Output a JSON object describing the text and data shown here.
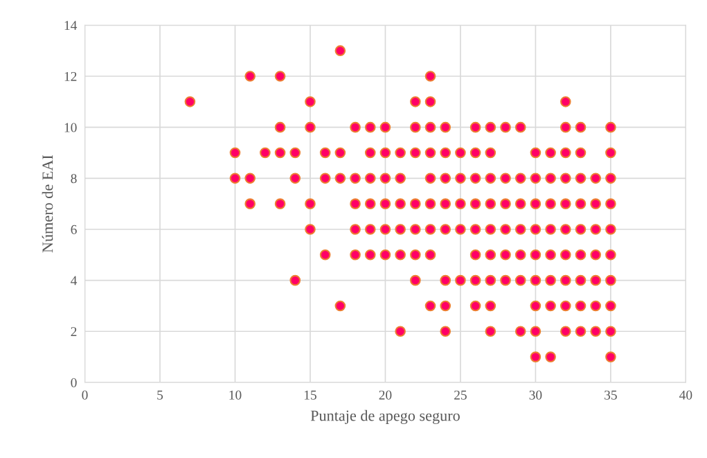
{
  "chart_data": {
    "type": "scatter",
    "xlabel": "Puntaje de apego seguro",
    "ylabel": "Número de EAI",
    "xlim": [
      0,
      40
    ],
    "xticks": [
      0,
      5,
      10,
      15,
      20,
      25,
      30,
      35,
      40
    ],
    "ylim": [
      0,
      14
    ],
    "yticks": [
      0,
      2,
      4,
      6,
      8,
      10,
      12,
      14
    ],
    "grid": true,
    "marker": "circle",
    "series": [
      {
        "color": "#ff0066",
        "x": [
          17,
          11,
          13,
          23,
          7,
          15,
          22,
          23,
          32,
          13,
          15,
          18,
          19,
          20,
          22,
          23,
          24,
          26,
          27,
          28,
          29,
          32,
          33,
          35,
          10,
          12,
          13,
          14,
          16,
          17,
          19,
          20,
          21,
          22,
          23,
          24,
          25,
          26,
          27,
          30,
          31,
          32,
          33,
          35,
          10,
          11,
          14,
          16,
          17,
          18,
          19,
          20,
          21,
          23,
          24,
          25,
          26,
          27,
          28,
          29,
          30,
          31,
          32,
          33,
          34,
          35,
          11,
          13,
          15,
          18,
          19,
          20,
          21,
          22,
          23,
          24,
          25,
          26,
          27,
          28,
          29,
          30,
          31,
          32,
          33,
          34,
          35,
          15,
          18,
          19,
          20,
          21,
          22,
          23,
          24,
          25,
          26,
          27,
          28,
          29,
          30,
          31,
          32,
          33,
          34,
          35,
          16,
          18,
          19,
          20,
          21,
          22,
          23,
          26,
          27,
          28,
          29,
          30,
          31,
          32,
          33,
          34,
          35,
          14,
          22,
          24,
          25,
          26,
          27,
          28,
          29,
          30,
          31,
          32,
          33,
          34,
          35,
          17,
          23,
          24,
          26,
          27,
          30,
          31,
          32,
          33,
          34,
          35,
          21,
          24,
          27,
          29,
          30,
          32,
          33,
          34,
          35,
          30,
          31,
          35
        ],
        "values": [
          13,
          12,
          12,
          12,
          11,
          11,
          11,
          11,
          11,
          10,
          10,
          10,
          10,
          10,
          10,
          10,
          10,
          10,
          10,
          10,
          10,
          10,
          10,
          10,
          9,
          9,
          9,
          9,
          9,
          9,
          9,
          9,
          9,
          9,
          9,
          9,
          9,
          9,
          9,
          9,
          9,
          9,
          9,
          9,
          8,
          8,
          8,
          8,
          8,
          8,
          8,
          8,
          8,
          8,
          8,
          8,
          8,
          8,
          8,
          8,
          8,
          8,
          8,
          8,
          8,
          8,
          7,
          7,
          7,
          7,
          7,
          7,
          7,
          7,
          7,
          7,
          7,
          7,
          7,
          7,
          7,
          7,
          7,
          7,
          7,
          7,
          7,
          6,
          6,
          6,
          6,
          6,
          6,
          6,
          6,
          6,
          6,
          6,
          6,
          6,
          6,
          6,
          6,
          6,
          6,
          6,
          5,
          5,
          5,
          5,
          5,
          5,
          5,
          5,
          5,
          5,
          5,
          5,
          5,
          5,
          5,
          5,
          5,
          4,
          4,
          4,
          4,
          4,
          4,
          4,
          4,
          4,
          4,
          4,
          4,
          4,
          4,
          3,
          3,
          3,
          3,
          3,
          3,
          3,
          3,
          3,
          3,
          3,
          2,
          2,
          2,
          2,
          2,
          2,
          2,
          2,
          2,
          1,
          1,
          1
        ]
      }
    ]
  }
}
